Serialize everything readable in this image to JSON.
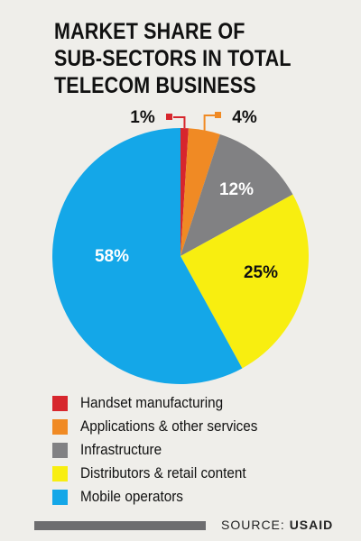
{
  "title_lines": [
    "MARKET SHARE OF",
    "SUB-SECTORS IN TOTAL",
    "TELECOM BUSINESS"
  ],
  "chart_data": {
    "type": "pie",
    "title": "MARKET SHARE OF SUB-SECTORS IN TOTAL TELECOM BUSINESS",
    "slices": [
      {
        "label": "Handset manufacturing",
        "value": 1,
        "display": "1%",
        "color": "#d7262d"
      },
      {
        "label": "Applications & other services",
        "value": 4,
        "display": "4%",
        "color": "#f08a24"
      },
      {
        "label": "Infrastructure",
        "value": 12,
        "display": "12%",
        "color": "#818183"
      },
      {
        "label": "Distributors & retail content",
        "value": 25,
        "display": "25%",
        "color": "#f8ee10"
      },
      {
        "label": "Mobile operators",
        "value": 58,
        "display": "58%",
        "color": "#14a7e8"
      }
    ]
  },
  "source": {
    "prefix": "SOURCE:",
    "name": "USAID"
  }
}
